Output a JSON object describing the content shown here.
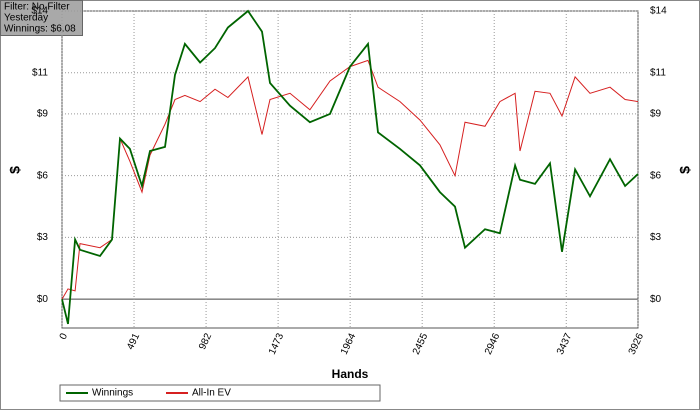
{
  "chart_data": {
    "type": "line",
    "annotations": [
      "Filter: No Filter",
      "Yesterday",
      "Winnings: $6.08"
    ],
    "xlabel": "Hands",
    "ylabel": "$",
    "y2label": "$",
    "x": [
      0,
      41,
      89,
      123,
      259,
      341,
      395,
      463,
      545,
      600,
      702,
      770,
      838,
      941,
      1043,
      1131,
      1268,
      1363,
      1418,
      1554,
      1690,
      1827,
      1963,
      2086,
      2154,
      2304,
      2440,
      2576,
      2679,
      2747,
      2883,
      2985,
      3088,
      3122,
      3224,
      3326,
      3408,
      3497,
      3599,
      3735,
      3838,
      3926
    ],
    "series": [
      {
        "name": "Winnings",
        "color": "#006400",
        "values": [
          0,
          -1.2,
          2.9,
          2.4,
          2.1,
          2.9,
          7.8,
          7.3,
          5.5,
          7.2,
          7.4,
          10.9,
          12.4,
          11.5,
          12.2,
          13.2,
          14.0,
          13.0,
          10.5,
          9.4,
          8.6,
          9.0,
          11.3,
          12.4,
          8.1,
          7.3,
          6.5,
          5.2,
          4.5,
          2.5,
          3.4,
          3.2,
          6.5,
          5.8,
          5.6,
          6.6,
          2.3,
          6.3,
          5.0,
          6.8,
          5.5,
          6.08
        ]
      },
      {
        "name": "All-In EV",
        "color": "#d62020",
        "values": [
          0,
          0.5,
          0.4,
          2.7,
          2.5,
          2.9,
          7.8,
          6.7,
          5.2,
          7.0,
          8.5,
          9.7,
          9.9,
          9.6,
          10.2,
          9.8,
          10.8,
          8.0,
          9.7,
          10.0,
          9.2,
          10.6,
          11.3,
          11.6,
          10.3,
          9.6,
          8.7,
          7.5,
          6.0,
          8.6,
          8.4,
          9.6,
          10.0,
          7.2,
          10.1,
          10.0,
          8.9,
          10.8,
          10.0,
          10.3,
          9.7,
          9.6
        ]
      }
    ],
    "xlim": [
      0,
      3926
    ],
    "xticks": [
      0,
      491,
      982,
      1473,
      1964,
      2455,
      2946,
      3437,
      3926
    ],
    "ylim": [
      -1.4,
      14
    ],
    "yticks": [
      {
        "value": 0,
        "label": "$0"
      },
      {
        "value": 3,
        "label": "$3"
      },
      {
        "value": 6,
        "label": "$6"
      },
      {
        "value": 9,
        "label": "$9"
      },
      {
        "value": 11,
        "label": "$11"
      },
      {
        "value": 14,
        "label": "$14"
      }
    ],
    "grid": true,
    "legend": "bottom-left"
  }
}
